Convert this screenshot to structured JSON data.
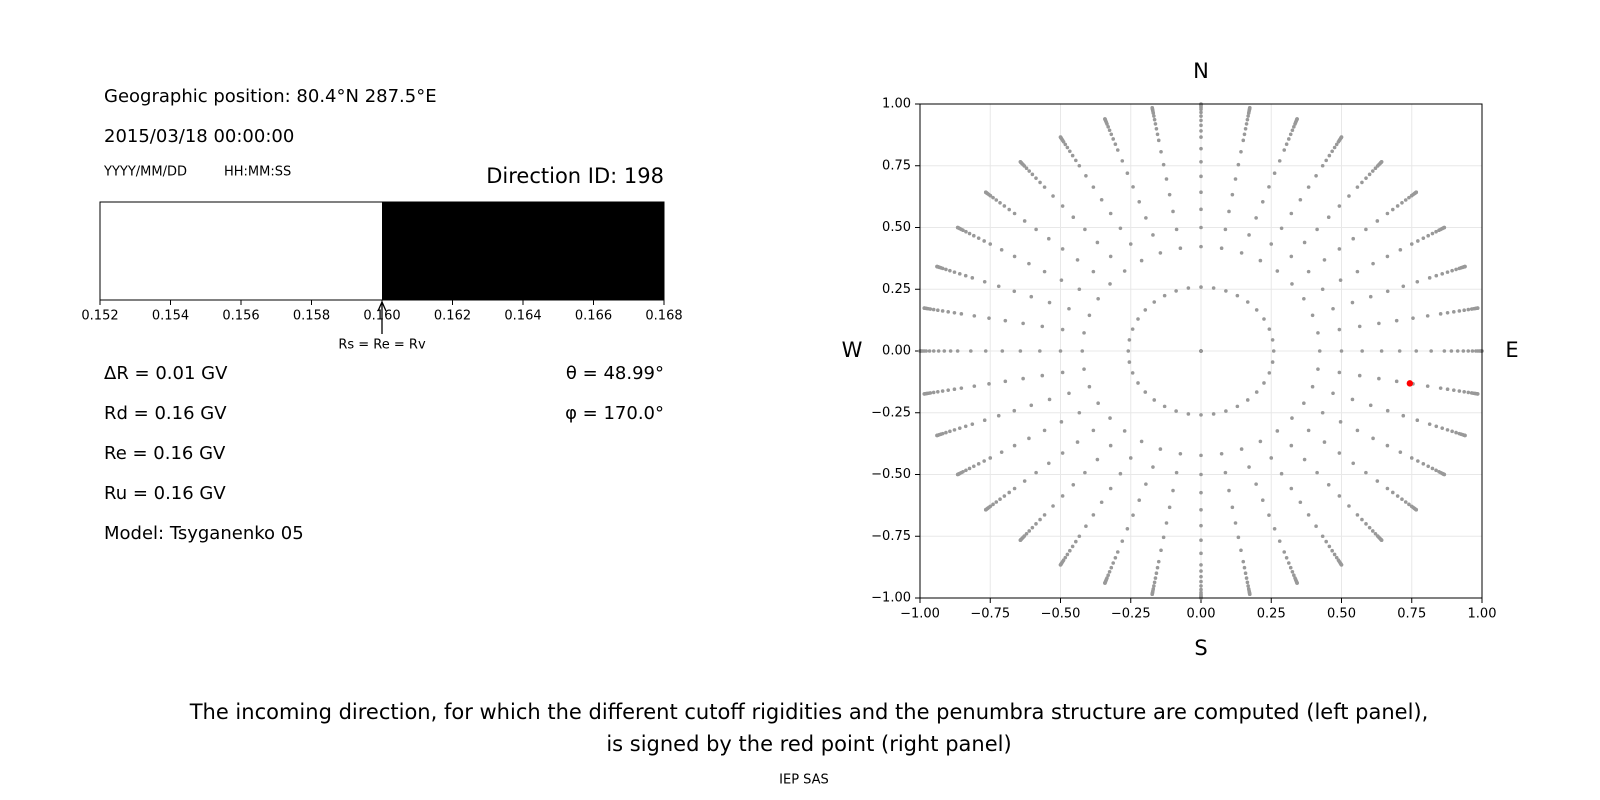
{
  "header": {
    "position": "Geographic position: 80.4°N 287.5°E",
    "datetime": "2015/03/18 00:00:00",
    "date_format": "YYYY/MM/DD",
    "time_format": "HH:MM:SS",
    "direction": "Direction ID: 198"
  },
  "penumbra": {
    "xlim": [
      0.152,
      0.168
    ],
    "xticks": [
      0.152,
      0.154,
      0.156,
      0.158,
      {
        "value": 0.16,
        "label": "0.160"
      },
      0.162,
      0.164,
      0.166,
      0.168
    ],
    "bands": [
      {
        "start": 0.152,
        "end": 0.16,
        "color": "#ffffff"
      },
      {
        "start": 0.16,
        "end": 0.168,
        "color": "#000000"
      }
    ],
    "marker": {
      "value": 0.16,
      "label": "Rs = Re = Rv"
    }
  },
  "results": [
    "ΔR = 0.01 GV",
    "Rd = 0.16 GV",
    "Re = 0.16 GV",
    "Ru = 0.16 GV",
    "Model: Tsyganenko 05"
  ],
  "angles": {
    "theta": {
      "value": 48.99,
      "label": "θ = 48.99°"
    },
    "phi": {
      "value": 170,
      "label": "φ = 170.0°"
    }
  },
  "chart_data": {
    "type": "scatter",
    "xlim": [
      -1,
      1
    ],
    "ylim": [
      -1,
      1
    ],
    "xticks": [
      {
        "value": -1,
        "label": "−1.00"
      },
      {
        "value": -0.75,
        "label": "−0.75"
      },
      {
        "value": -0.5,
        "label": "−0.50"
      },
      {
        "value": -0.25,
        "label": "−0.25"
      },
      {
        "value": 0,
        "label": "0.00"
      },
      0.25,
      {
        "value": 0.5,
        "label": "0.50"
      },
      0.75,
      {
        "value": 1,
        "label": "1.00"
      }
    ],
    "yticks": [
      {
        "value": -1,
        "label": "−1.00"
      },
      {
        "value": -0.75,
        "label": "−0.75"
      },
      {
        "value": -0.5,
        "label": "−0.50"
      },
      {
        "value": -0.25,
        "label": "−0.25"
      },
      {
        "value": 0,
        "label": "0.00"
      },
      0.25,
      {
        "value": 0.5,
        "label": "0.50"
      },
      0.75,
      {
        "value": 1,
        "label": "1.00"
      }
    ],
    "grid": true,
    "color": "#999999",
    "highlight_color": "#ff0000",
    "azimuths": [
      0,
      10,
      20,
      30,
      40,
      50,
      60,
      70,
      80,
      90,
      100,
      110,
      120,
      130,
      140,
      150,
      160,
      170,
      180,
      190,
      200,
      210,
      220,
      230,
      240,
      250,
      260,
      270,
      280,
      290,
      300,
      310,
      320,
      330,
      340,
      350
    ],
    "ring_zeniths": [
      0,
      15
    ],
    "ray_zeniths": [
      25,
      30,
      35,
      40,
      45,
      50,
      55,
      60,
      63,
      66,
      69,
      72,
      75,
      78,
      80,
      82,
      84,
      86,
      88,
      90
    ],
    "compass": [
      "N",
      "E",
      "S",
      "W"
    ]
  },
  "caption": [
    "The incoming direction, for which the different cutoff rigidities and the penumbra structure are computed (left panel),",
    "is signed by the red point (right panel)"
  ],
  "footer": "IEP SAS"
}
